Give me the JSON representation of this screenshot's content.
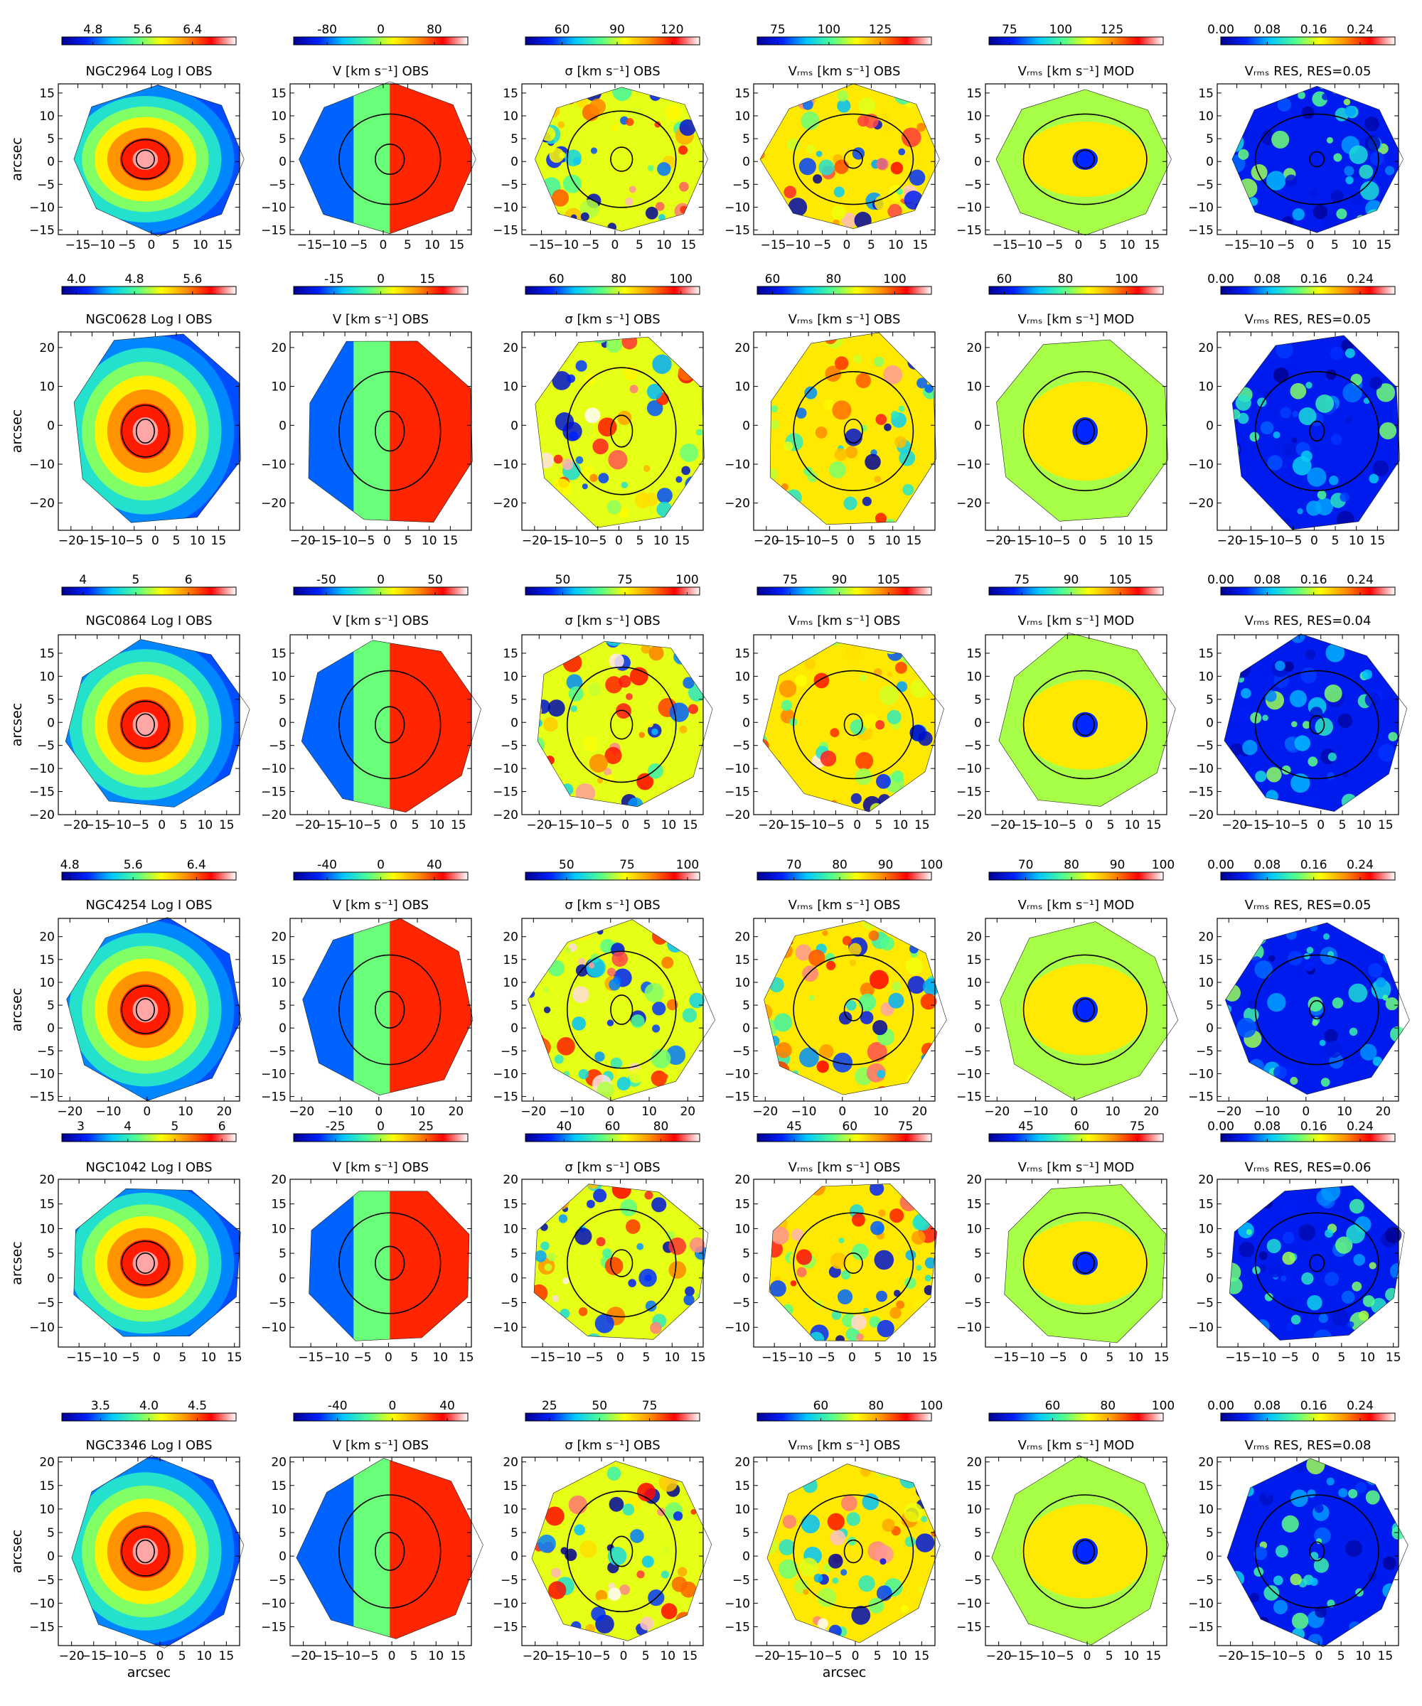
{
  "colormap_stops": [
    "#00008f",
    "#0020ff",
    "#00c8ff",
    "#50ff90",
    "#ffff00",
    "#ff9000",
    "#ff0000",
    "#ffffff"
  ],
  "contour_color": "#000000",
  "column_titles": [
    "Log I OBS",
    "V [km s⁻¹] OBS",
    "σ [km s⁻¹] OBS",
    "Vᵣₘₛ [km s⁻¹] OBS",
    "Vᵣₘₛ [km s⁻¹] MOD",
    "Vᵣₘₛ RES, RES=0.05"
  ],
  "x_axis_label": "arcsec",
  "y_axis_label": "arcsec",
  "chart_data": [
    {
      "type": "heatmap",
      "galaxy": "NGC2964",
      "xlim": [
        -19,
        18
      ],
      "ylim": [
        -16,
        17
      ],
      "xticks": [
        "-15",
        "-10",
        "-5",
        "0",
        "5",
        "10",
        "15"
      ],
      "yticks": [
        "15",
        "10",
        "5",
        "0",
        "-5",
        "-10",
        "-15"
      ],
      "panels": [
        {
          "title": "NGC2964    Log I OBS",
          "colorbar_ticks": [
            "4.8",
            "5.6",
            "6.4"
          ],
          "colorbar_range": [
            4.3,
            7.1
          ]
        },
        {
          "title": "V [km s⁻¹] OBS",
          "colorbar_ticks": [
            "-80",
            "0",
            "80"
          ],
          "colorbar_range": [
            -130,
            130
          ]
        },
        {
          "title": "σ [km s⁻¹] OBS",
          "colorbar_ticks": [
            "60",
            "90",
            "120"
          ],
          "colorbar_range": [
            40,
            135
          ]
        },
        {
          "title": "Vᵣₘₛ [km s⁻¹] OBS",
          "colorbar_ticks": [
            "75",
            "100",
            "125"
          ],
          "colorbar_range": [
            65,
            150
          ]
        },
        {
          "title": "Vᵣₘₛ [km s⁻¹] MOD",
          "colorbar_ticks": [
            "75",
            "100",
            "125"
          ],
          "colorbar_range": [
            65,
            150
          ]
        },
        {
          "title": "Vᵣₘₛ RES, RES=0.05",
          "colorbar_ticks": [
            "0.00",
            "0.08",
            "0.16",
            "0.24"
          ],
          "colorbar_range": [
            0,
            0.3
          ]
        }
      ]
    },
    {
      "type": "heatmap",
      "galaxy": "NGC0628",
      "xlim": [
        -23,
        20
      ],
      "ylim": [
        -27,
        24
      ],
      "xticks": [
        "-20",
        "-15",
        "-10",
        "-5",
        "0",
        "5",
        "10",
        "15"
      ],
      "yticks": [
        "20",
        "10",
        "0",
        "-10",
        "-20"
      ],
      "panels": [
        {
          "title": "NGC0628    Log I OBS",
          "colorbar_ticks": [
            "4.0",
            "4.8",
            "5.6"
          ],
          "colorbar_range": [
            3.8,
            6.2
          ]
        },
        {
          "title": "V [km s⁻¹] OBS",
          "colorbar_ticks": [
            "-15",
            "0",
            "15"
          ],
          "colorbar_range": [
            -28,
            28
          ]
        },
        {
          "title": "σ [km s⁻¹] OBS",
          "colorbar_ticks": [
            "60",
            "80",
            "100"
          ],
          "colorbar_range": [
            50,
            106
          ]
        },
        {
          "title": "Vᵣₘₛ [km s⁻¹] OBS",
          "colorbar_ticks": [
            "60",
            "80",
            "100"
          ],
          "colorbar_range": [
            55,
            112
          ]
        },
        {
          "title": "Vᵣₘₛ [km s⁻¹] MOD",
          "colorbar_ticks": [
            "60",
            "80",
            "100"
          ],
          "colorbar_range": [
            55,
            112
          ]
        },
        {
          "title": "Vᵣₘₛ RES, RES=0.05",
          "colorbar_ticks": [
            "0.00",
            "0.08",
            "0.16",
            "0.24"
          ],
          "colorbar_range": [
            0,
            0.3
          ]
        }
      ]
    },
    {
      "type": "heatmap",
      "galaxy": "NGC0864",
      "xlim": [
        -24,
        18
      ],
      "ylim": [
        -20,
        19
      ],
      "xticks": [
        "-20",
        "-15",
        "-10",
        "-5",
        "0",
        "5",
        "10",
        "15"
      ],
      "yticks": [
        "15",
        "10",
        "5",
        "0",
        "-5",
        "-10",
        "-15",
        "-20"
      ],
      "panels": [
        {
          "title": "NGC0864    Log I OBS",
          "colorbar_ticks": [
            "4",
            "5",
            "6"
          ],
          "colorbar_range": [
            3.6,
            6.9
          ]
        },
        {
          "title": "V [km s⁻¹] OBS",
          "colorbar_ticks": [
            "-50",
            "0",
            "50"
          ],
          "colorbar_range": [
            -80,
            80
          ]
        },
        {
          "title": "σ [km s⁻¹] OBS",
          "colorbar_ticks": [
            "50",
            "75",
            "100"
          ],
          "colorbar_range": [
            35,
            105
          ]
        },
        {
          "title": "Vᵣₘₛ [km s⁻¹] OBS",
          "colorbar_ticks": [
            "75",
            "90",
            "105"
          ],
          "colorbar_range": [
            65,
            118
          ]
        },
        {
          "title": "Vᵣₘₛ [km s⁻¹] MOD",
          "colorbar_ticks": [
            "75",
            "90",
            "105"
          ],
          "colorbar_range": [
            65,
            118
          ]
        },
        {
          "title": "Vᵣₘₛ RES, RES=0.04",
          "colorbar_ticks": [
            "0.00",
            "0.08",
            "0.16",
            "0.24"
          ],
          "colorbar_range": [
            0,
            0.3
          ]
        }
      ]
    },
    {
      "type": "heatmap",
      "galaxy": "NGC4254",
      "xlim": [
        -23,
        24
      ],
      "ylim": [
        -16,
        24
      ],
      "xticks": [
        "-20",
        "-10",
        "0",
        "10",
        "20"
      ],
      "yticks": [
        "20",
        "15",
        "10",
        "5",
        "0",
        "-5",
        "-10",
        "-15"
      ],
      "panels": [
        {
          "title": "NGC4254    Log I OBS",
          "colorbar_ticks": [
            "4.8",
            "5.6",
            "6.4"
          ],
          "colorbar_range": [
            4.7,
            6.9
          ]
        },
        {
          "title": "V [km s⁻¹] OBS",
          "colorbar_ticks": [
            "-40",
            "0",
            "40"
          ],
          "colorbar_range": [
            -65,
            65
          ]
        },
        {
          "title": "σ [km s⁻¹] OBS",
          "colorbar_ticks": [
            "50",
            "75",
            "100"
          ],
          "colorbar_range": [
            33,
            105
          ]
        },
        {
          "title": "Vᵣₘₛ [km s⁻¹] OBS",
          "colorbar_ticks": [
            "70",
            "80",
            "90",
            "100"
          ],
          "colorbar_range": [
            62,
            100
          ]
        },
        {
          "title": "Vᵣₘₛ [km s⁻¹] MOD",
          "colorbar_ticks": [
            "70",
            "80",
            "90",
            "100"
          ],
          "colorbar_range": [
            62,
            100
          ]
        },
        {
          "title": "Vᵣₘₛ RES, RES=0.05",
          "colorbar_ticks": [
            "0.00",
            "0.08",
            "0.16",
            "0.24"
          ],
          "colorbar_range": [
            0,
            0.3
          ]
        }
      ]
    },
    {
      "type": "heatmap",
      "galaxy": "NGC1042",
      "xlim": [
        -19,
        16
      ],
      "ylim": [
        -14,
        20
      ],
      "xticks": [
        "-15",
        "-10",
        "-5",
        "0",
        "5",
        "10",
        "15"
      ],
      "yticks": [
        "20",
        "15",
        "10",
        "5",
        "0",
        "-5",
        "-10"
      ],
      "panels": [
        {
          "title": "NGC1042    Log I OBS",
          "colorbar_ticks": [
            "3",
            "4",
            "5",
            "6"
          ],
          "colorbar_range": [
            2.6,
            6.3
          ]
        },
        {
          "title": "V [km s⁻¹] OBS",
          "colorbar_ticks": [
            "-25",
            "0",
            "25"
          ],
          "colorbar_range": [
            -48,
            48
          ]
        },
        {
          "title": "σ [km s⁻¹] OBS",
          "colorbar_ticks": [
            "40",
            "60",
            "80"
          ],
          "colorbar_range": [
            24,
            96
          ]
        },
        {
          "title": "Vᵣₘₛ [km s⁻¹] OBS",
          "colorbar_ticks": [
            "45",
            "60",
            "75"
          ],
          "colorbar_range": [
            35,
            82
          ]
        },
        {
          "title": "Vᵣₘₛ [km s⁻¹] MOD",
          "colorbar_ticks": [
            "45",
            "60",
            "75"
          ],
          "colorbar_range": [
            35,
            82
          ]
        },
        {
          "title": "Vᵣₘₛ RES, RES=0.06",
          "colorbar_ticks": [
            "0.00",
            "0.08",
            "0.16",
            "0.24"
          ],
          "colorbar_range": [
            0,
            0.3
          ]
        }
      ]
    },
    {
      "type": "heatmap",
      "galaxy": "NGC3346",
      "xlim": [
        -23,
        18
      ],
      "ylim": [
        -19,
        21
      ],
      "xticks": [
        "-20",
        "-15",
        "-10",
        "-5",
        "0",
        "5",
        "10",
        "15"
      ],
      "yticks": [
        "20",
        "15",
        "10",
        "5",
        "0",
        "-5",
        "-10",
        "-15"
      ],
      "panels": [
        {
          "title": "NGC3346    Log I OBS",
          "colorbar_ticks": [
            "3.5",
            "4.0",
            "4.5"
          ],
          "colorbar_range": [
            3.1,
            4.9
          ]
        },
        {
          "title": "V [km s⁻¹] OBS",
          "colorbar_ticks": [
            "-40",
            "0",
            "40"
          ],
          "colorbar_range": [
            -72,
            55
          ]
        },
        {
          "title": "σ [km s⁻¹] OBS",
          "colorbar_ticks": [
            "25",
            "50",
            "75"
          ],
          "colorbar_range": [
            13,
            100
          ]
        },
        {
          "title": "Vᵣₘₛ [km s⁻¹] OBS",
          "colorbar_ticks": [
            "60",
            "80",
            "100"
          ],
          "colorbar_range": [
            37,
            100
          ]
        },
        {
          "title": "Vᵣₘₛ [km s⁻¹] MOD",
          "colorbar_ticks": [
            "60",
            "80",
            "100"
          ],
          "colorbar_range": [
            37,
            100
          ]
        },
        {
          "title": "Vᵣₘₛ RES, RES=0.08",
          "colorbar_ticks": [
            "0.00",
            "0.08",
            "0.16",
            "0.24"
          ],
          "colorbar_range": [
            0,
            0.3
          ]
        }
      ]
    }
  ]
}
